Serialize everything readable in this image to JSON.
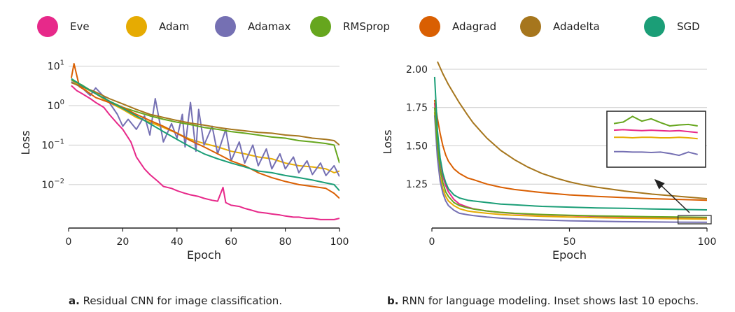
{
  "legend": [
    {
      "name": "Eve",
      "color": "#e7298a"
    },
    {
      "name": "Adam",
      "color": "#e6ab02"
    },
    {
      "name": "Adamax",
      "color": "#7570b3"
    },
    {
      "name": "RMSprop",
      "color": "#66a61e"
    },
    {
      "name": "Adagrad",
      "color": "#d95f02"
    },
    {
      "name": "Adadelta",
      "color": "#a6761d"
    },
    {
      "name": "SGD",
      "color": "#1b9e77"
    }
  ],
  "captions": {
    "a_letter": "a.",
    "a_text": "Residual CNN for image classification.",
    "b_letter": "b.",
    "b_text": "RNN for language modeling. Inset shows last 10 epochs."
  },
  "chart_data": [
    {
      "type": "line",
      "xlabel": "Epoch",
      "ylabel": "Loss",
      "yscale": "log",
      "xlim": [
        0,
        100
      ],
      "ylim": [
        0.0011,
        12
      ],
      "xticks": [
        0,
        20,
        40,
        60,
        80,
        100
      ],
      "yticks": [
        {
          "value": 10,
          "label": "10^1"
        },
        {
          "value": 1,
          "label": "10^0"
        },
        {
          "value": 0.1,
          "label": "10^-1"
        },
        {
          "value": 0.01,
          "label": "10^-2"
        }
      ],
      "grid": "horizontal",
      "series": [
        {
          "name": "Eve",
          "color": "#e7298a",
          "x": [
            1,
            3,
            5,
            8,
            10,
            13,
            15,
            18,
            20,
            23,
            25,
            28,
            30,
            33,
            35,
            38,
            40,
            43,
            45,
            48,
            50,
            53,
            55,
            57,
            58,
            60,
            63,
            65,
            68,
            70,
            73,
            75,
            78,
            80,
            83,
            85,
            88,
            90,
            93,
            95,
            98,
            100
          ],
          "y": [
            3.2,
            2.4,
            2.0,
            1.5,
            1.2,
            0.9,
            0.6,
            0.35,
            0.25,
            0.12,
            0.05,
            0.025,
            0.018,
            0.012,
            0.009,
            0.008,
            0.007,
            0.006,
            0.0055,
            0.005,
            0.0045,
            0.004,
            0.0038,
            0.0085,
            0.0035,
            0.003,
            0.0028,
            0.0025,
            0.0022,
            0.002,
            0.0019,
            0.0018,
            0.0017,
            0.0016,
            0.0015,
            0.0015,
            0.0014,
            0.0014,
            0.0013,
            0.0013,
            0.0013,
            0.0014
          ]
        },
        {
          "name": "Adam",
          "color": "#e6ab02",
          "x": [
            1,
            5,
            10,
            15,
            20,
            25,
            30,
            35,
            40,
            45,
            50,
            55,
            60,
            65,
            70,
            75,
            80,
            85,
            90,
            95,
            98,
            100
          ],
          "y": [
            4.5,
            3.0,
            2.0,
            1.2,
            0.8,
            0.5,
            0.38,
            0.28,
            0.2,
            0.14,
            0.11,
            0.09,
            0.07,
            0.06,
            0.05,
            0.045,
            0.035,
            0.03,
            0.028,
            0.025,
            0.02,
            0.022
          ]
        },
        {
          "name": "Adamax",
          "color": "#7570b3",
          "x": [
            1,
            5,
            8,
            10,
            15,
            18,
            20,
            22,
            25,
            28,
            30,
            32,
            35,
            38,
            40,
            42,
            43,
            45,
            47,
            48,
            50,
            53,
            55,
            58,
            60,
            63,
            65,
            68,
            70,
            73,
            75,
            78,
            80,
            83,
            85,
            88,
            90,
            93,
            95,
            98,
            100
          ],
          "y": [
            4.0,
            2.8,
            1.8,
            2.8,
            1.2,
            0.6,
            0.3,
            0.45,
            0.25,
            0.55,
            0.18,
            1.5,
            0.12,
            0.35,
            0.15,
            0.6,
            0.09,
            1.2,
            0.07,
            0.8,
            0.1,
            0.3,
            0.06,
            0.25,
            0.04,
            0.12,
            0.035,
            0.1,
            0.03,
            0.08,
            0.025,
            0.06,
            0.025,
            0.05,
            0.02,
            0.04,
            0.018,
            0.035,
            0.017,
            0.03,
            0.016
          ]
        },
        {
          "name": "RMSprop",
          "color": "#66a61e",
          "x": [
            1,
            5,
            10,
            15,
            20,
            25,
            30,
            35,
            40,
            45,
            50,
            55,
            60,
            65,
            70,
            75,
            80,
            85,
            90,
            95,
            98,
            100
          ],
          "y": [
            4.5,
            3.3,
            2.0,
            1.3,
            0.9,
            0.7,
            0.55,
            0.45,
            0.38,
            0.33,
            0.28,
            0.25,
            0.22,
            0.2,
            0.18,
            0.16,
            0.15,
            0.13,
            0.12,
            0.11,
            0.1,
            0.035
          ]
        },
        {
          "name": "Adagrad",
          "color": "#d95f02",
          "x": [
            1,
            2,
            4,
            6,
            10,
            15,
            20,
            25,
            30,
            35,
            40,
            45,
            50,
            55,
            60,
            65,
            70,
            75,
            80,
            85,
            90,
            95,
            98,
            100
          ],
          "y": [
            5.0,
            11.5,
            3.0,
            2.5,
            1.6,
            1.2,
            0.9,
            0.6,
            0.42,
            0.3,
            0.2,
            0.13,
            0.09,
            0.06,
            0.04,
            0.03,
            0.02,
            0.015,
            0.012,
            0.01,
            0.009,
            0.008,
            0.006,
            0.0045
          ]
        },
        {
          "name": "Adadelta",
          "color": "#a6761d",
          "x": [
            1,
            5,
            10,
            15,
            20,
            25,
            30,
            35,
            40,
            45,
            50,
            55,
            60,
            65,
            70,
            75,
            80,
            85,
            90,
            95,
            98,
            100
          ],
          "y": [
            3.8,
            3.0,
            2.2,
            1.5,
            1.1,
            0.8,
            0.6,
            0.5,
            0.42,
            0.36,
            0.32,
            0.28,
            0.25,
            0.23,
            0.21,
            0.2,
            0.18,
            0.17,
            0.15,
            0.14,
            0.13,
            0.1
          ]
        },
        {
          "name": "SGD",
          "color": "#1b9e77",
          "x": [
            1,
            5,
            10,
            15,
            20,
            25,
            30,
            35,
            40,
            45,
            50,
            55,
            60,
            65,
            70,
            75,
            80,
            85,
            90,
            95,
            98,
            100
          ],
          "y": [
            4.8,
            3.2,
            2.0,
            1.3,
            0.85,
            0.55,
            0.35,
            0.22,
            0.14,
            0.09,
            0.06,
            0.045,
            0.035,
            0.028,
            0.022,
            0.02,
            0.017,
            0.015,
            0.013,
            0.011,
            0.01,
            0.007
          ]
        }
      ]
    },
    {
      "type": "line",
      "xlabel": "Epoch",
      "ylabel": "Loss",
      "xlim": [
        0,
        100
      ],
      "ylim": [
        1.0,
        2.05
      ],
      "xticks": [
        0,
        50,
        100
      ],
      "yticks": [
        1.25,
        1.5,
        1.75,
        2.0
      ],
      "grid": "horizontal",
      "inset": {
        "description_window": [
          91,
          100
        ],
        "arrow": "points to last 10 epochs"
      },
      "series": [
        {
          "name": "Eve",
          "color": "#e7298a",
          "x": [
            1,
            2,
            3,
            4,
            5,
            6,
            8,
            10,
            13,
            15,
            20,
            25,
            30,
            40,
            50,
            60,
            70,
            80,
            90,
            100
          ],
          "y": [
            1.78,
            1.55,
            1.4,
            1.3,
            1.24,
            1.2,
            1.15,
            1.12,
            1.1,
            1.09,
            1.075,
            1.065,
            1.058,
            1.05,
            1.045,
            1.04,
            1.036,
            1.033,
            1.03,
            1.028
          ]
        },
        {
          "name": "Adam",
          "color": "#e6ab02",
          "x": [
            1,
            2,
            3,
            4,
            5,
            6,
            8,
            10,
            13,
            15,
            20,
            25,
            30,
            40,
            50,
            60,
            70,
            80,
            90,
            100
          ],
          "y": [
            1.72,
            1.45,
            1.3,
            1.22,
            1.17,
            1.14,
            1.11,
            1.09,
            1.075,
            1.07,
            1.06,
            1.052,
            1.047,
            1.04,
            1.035,
            1.031,
            1.028,
            1.026,
            1.024,
            1.022
          ]
        },
        {
          "name": "Adamax",
          "color": "#7570b3",
          "x": [
            1,
            2,
            3,
            4,
            5,
            6,
            8,
            10,
            13,
            15,
            20,
            25,
            30,
            40,
            50,
            60,
            70,
            80,
            90,
            100
          ],
          "y": [
            1.7,
            1.42,
            1.27,
            1.19,
            1.14,
            1.11,
            1.08,
            1.06,
            1.05,
            1.045,
            1.035,
            1.028,
            1.023,
            1.016,
            1.011,
            1.008,
            1.005,
            1.003,
            1.002,
            1.001
          ]
        },
        {
          "name": "RMSprop",
          "color": "#66a61e",
          "x": [
            1,
            2,
            3,
            4,
            5,
            6,
            8,
            10,
            13,
            15,
            20,
            25,
            30,
            40,
            50,
            60,
            70,
            80,
            90,
            100
          ],
          "y": [
            1.75,
            1.5,
            1.35,
            1.26,
            1.2,
            1.17,
            1.13,
            1.11,
            1.095,
            1.088,
            1.075,
            1.066,
            1.06,
            1.052,
            1.047,
            1.043,
            1.04,
            1.037,
            1.035,
            1.033
          ]
        },
        {
          "name": "Adagrad",
          "color": "#d95f02",
          "x": [
            1,
            2,
            3,
            4,
            5,
            6,
            8,
            10,
            13,
            15,
            20,
            25,
            30,
            40,
            50,
            60,
            70,
            80,
            90,
            100
          ],
          "y": [
            1.8,
            1.68,
            1.58,
            1.5,
            1.44,
            1.4,
            1.35,
            1.32,
            1.29,
            1.28,
            1.25,
            1.23,
            1.215,
            1.195,
            1.18,
            1.17,
            1.162,
            1.155,
            1.15,
            1.145
          ]
        },
        {
          "name": "Adadelta",
          "color": "#a6761d",
          "x": [
            2,
            4,
            6,
            8,
            10,
            13,
            15,
            18,
            20,
            25,
            30,
            35,
            40,
            45,
            50,
            55,
            60,
            70,
            80,
            90,
            100
          ],
          "y": [
            2.05,
            1.97,
            1.9,
            1.84,
            1.78,
            1.7,
            1.65,
            1.59,
            1.55,
            1.47,
            1.41,
            1.36,
            1.32,
            1.29,
            1.265,
            1.245,
            1.23,
            1.205,
            1.185,
            1.17,
            1.155
          ]
        },
        {
          "name": "SGD",
          "color": "#1b9e77",
          "x": [
            1,
            2,
            3,
            4,
            5,
            6,
            8,
            10,
            13,
            15,
            20,
            25,
            30,
            40,
            50,
            60,
            70,
            80,
            90,
            100
          ],
          "y": [
            1.95,
            1.6,
            1.42,
            1.32,
            1.26,
            1.22,
            1.18,
            1.16,
            1.145,
            1.14,
            1.13,
            1.12,
            1.115,
            1.105,
            1.1,
            1.095,
            1.092,
            1.088,
            1.085,
            1.082
          ]
        }
      ]
    }
  ]
}
